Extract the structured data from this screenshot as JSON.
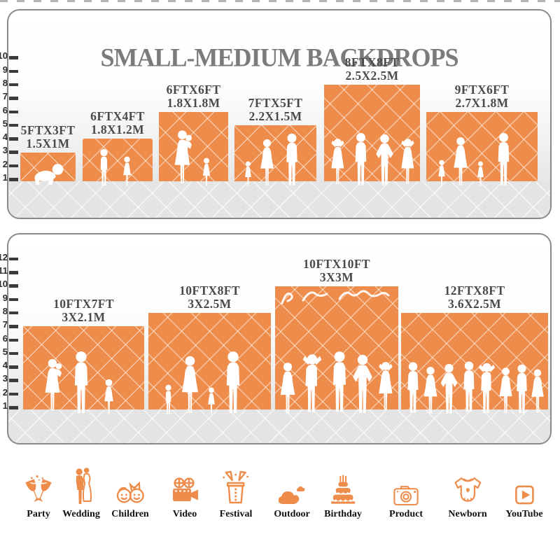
{
  "title": "SMALL-MEDIUM BACKDROPS",
  "accent_color": "#EE8C4B",
  "panels": [
    {
      "name": "small-medium-panel",
      "ruler_numbers": [
        10,
        9,
        8,
        7,
        6,
        5,
        4,
        3,
        2,
        1
      ],
      "backdrops": [
        {
          "size_ft": "5FTX3FT",
          "size_m": "1.5X1M",
          "height_ft": 3,
          "figures": "crawling-baby-silhouette"
        },
        {
          "size_ft": "6FTX4FT",
          "size_m": "1.8X1.2M",
          "height_ft": 4,
          "figures": "boy-and-girl-silhouettes"
        },
        {
          "size_ft": "6FTX6FT",
          "size_m": "1.8X1.8M",
          "height_ft": 6,
          "figures": "mother-holding-baby-and-girl-silhouettes"
        },
        {
          "size_ft": "7FTX5FT",
          "size_m": "2.2X1.5M",
          "height_ft": 5,
          "figures": "child-woman-man-silhouettes"
        },
        {
          "size_ft": "8FTX8FT",
          "size_m": "2.5X2.5M",
          "height_ft": 8,
          "figures": "four-posing-adults-silhouettes"
        },
        {
          "size_ft": "9FTX6FT",
          "size_m": "2.7X1.8M",
          "height_ft": 6,
          "figures": "family-of-four-silhouettes"
        }
      ]
    },
    {
      "name": "medium-large-panel",
      "ruler_numbers": [
        12,
        11,
        10,
        9,
        8,
        7,
        6,
        5,
        4,
        3,
        2,
        1
      ],
      "backdrops": [
        {
          "size_ft": "10FTX7FT",
          "size_m": "3X2.1M",
          "height_ft": 7,
          "figures": "mother-father-girl-silhouettes"
        },
        {
          "size_ft": "10FTX8FT",
          "size_m": "3X2.5M",
          "height_ft": 8,
          "figures": "walking-family-of-four-silhouettes"
        },
        {
          "size_ft": "10FTX10FT",
          "size_m": "3X3M",
          "height_ft": 10,
          "figures": "five-posing-adults-silhouettes"
        },
        {
          "size_ft": "12FTX8FT",
          "size_m": "3.6X2.5M",
          "height_ft": 8,
          "figures": "crowd-of-adults-silhouettes"
        }
      ]
    }
  ],
  "categories": [
    {
      "label": "Party",
      "icon": "party-icon"
    },
    {
      "label": "Wedding",
      "icon": "wedding-icon"
    },
    {
      "label": "Children",
      "icon": "children-icon"
    },
    {
      "label": "Video",
      "icon": "video-icon"
    },
    {
      "label": "Festival",
      "icon": "festival-icon"
    },
    {
      "label": "Outdoor",
      "icon": "outdoor-icon"
    },
    {
      "label": "Birthday",
      "icon": "birthday-icon"
    },
    {
      "label": "Product",
      "icon": "product-icon"
    },
    {
      "label": "Newborn",
      "icon": "newborn-icon"
    },
    {
      "label": "YouTube",
      "icon": "youtube-icon"
    }
  ]
}
